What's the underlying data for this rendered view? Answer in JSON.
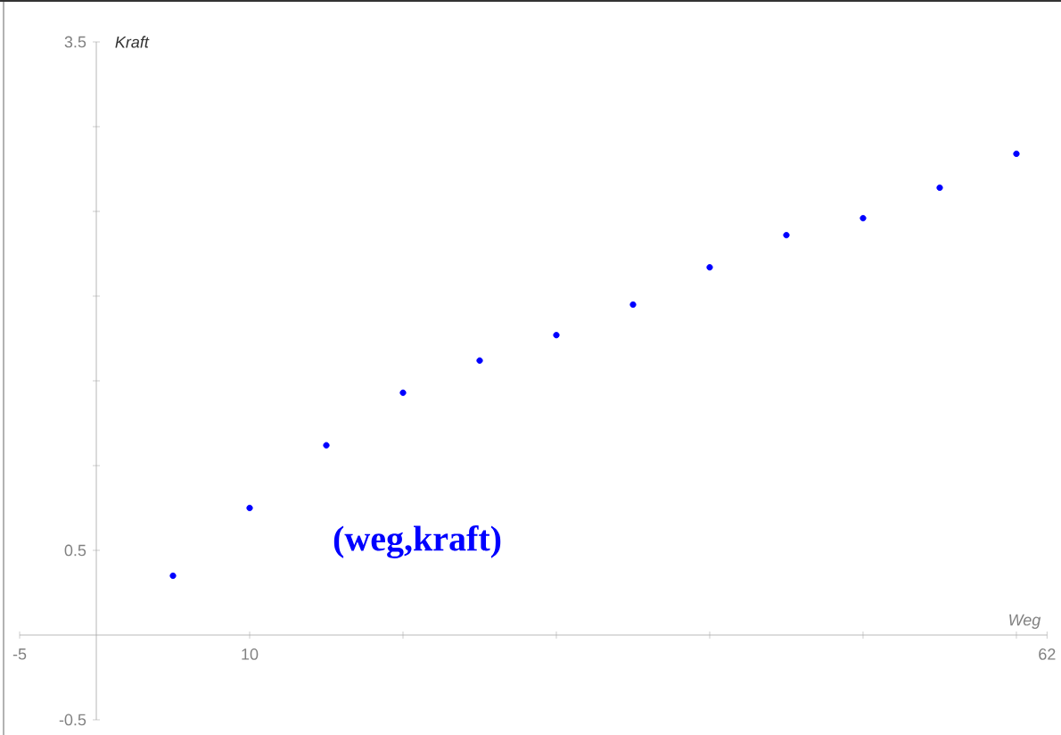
{
  "chart_data": {
    "type": "scatter",
    "xlabel": "Weg",
    "ylabel": "Kraft",
    "x": [
      5,
      10,
      15,
      20,
      25,
      30,
      35,
      40,
      45,
      50,
      55,
      60
    ],
    "series": [
      {
        "name": "(weg,kraft)",
        "color": "#0000ff",
        "values": [
          0.35,
          0.75,
          1.12,
          1.43,
          1.62,
          1.77,
          1.95,
          2.17,
          2.36,
          2.46,
          2.64,
          2.84
        ]
      }
    ],
    "xlim": [
      -5,
      62
    ],
    "ylim": [
      -0.5,
      3.5
    ],
    "xticks": [
      -5,
      10,
      {
        "value": 20,
        "label": null
      },
      {
        "value": 30,
        "label": null
      },
      {
        "value": 40,
        "label": null
      },
      {
        "value": 50,
        "label": null
      },
      {
        "value": 60,
        "label": null
      },
      62
    ],
    "yticks": [
      -0.5,
      0.5,
      {
        "value": 1,
        "label": null
      },
      {
        "value": 1.5,
        "label": null
      },
      {
        "value": 2,
        "label": null
      },
      {
        "value": 2.5,
        "label": null
      },
      {
        "value": 3,
        "label": null
      },
      3.5
    ],
    "legend": false,
    "grid": false
  }
}
